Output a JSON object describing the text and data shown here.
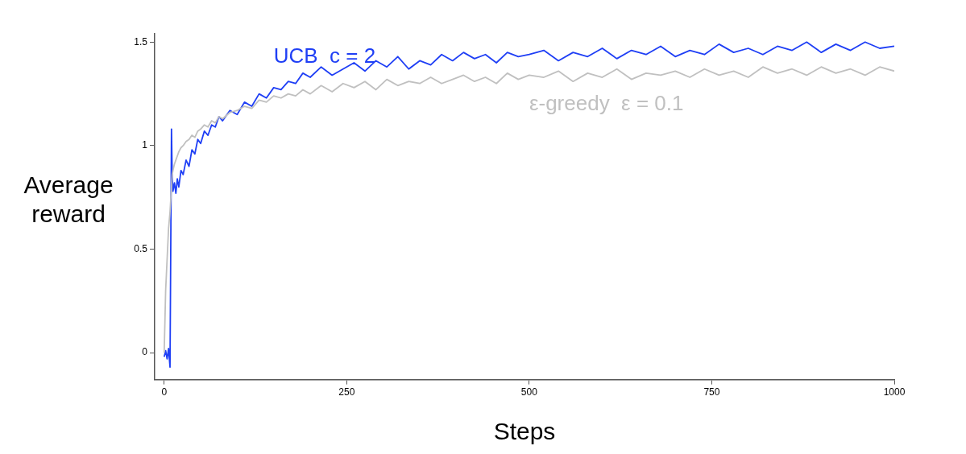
{
  "chart_data": {
    "type": "line",
    "xlabel": "Steps",
    "ylabel": "Average reward",
    "x": [
      0,
      2,
      4,
      6,
      8,
      10,
      11,
      12,
      14,
      16,
      18,
      20,
      23,
      26,
      30,
      34,
      38,
      42,
      46,
      50,
      55,
      60,
      65,
      70,
      75,
      80,
      90,
      100,
      110,
      120,
      130,
      140,
      150,
      160,
      170,
      180,
      190,
      200,
      215,
      230,
      245,
      260,
      275,
      290,
      305,
      320,
      335,
      350,
      365,
      380,
      395,
      410,
      425,
      440,
      455,
      470,
      485,
      500,
      520,
      540,
      560,
      580,
      600,
      620,
      640,
      660,
      680,
      700,
      720,
      740,
      760,
      780,
      800,
      820,
      840,
      860,
      880,
      900,
      920,
      940,
      960,
      980,
      1000
    ],
    "series": [
      {
        "name": "ε-greedy  ε = 0.1",
        "color": "#c0c0c0",
        "values": [
          0.0,
          0.3,
          0.45,
          0.6,
          0.68,
          0.8,
          0.86,
          0.88,
          0.91,
          0.93,
          0.95,
          0.97,
          0.99,
          1.0,
          1.02,
          1.03,
          1.05,
          1.04,
          1.07,
          1.08,
          1.1,
          1.09,
          1.12,
          1.11,
          1.14,
          1.13,
          1.16,
          1.17,
          1.19,
          1.18,
          1.22,
          1.21,
          1.24,
          1.23,
          1.25,
          1.24,
          1.27,
          1.25,
          1.29,
          1.26,
          1.3,
          1.28,
          1.31,
          1.27,
          1.32,
          1.29,
          1.31,
          1.3,
          1.33,
          1.3,
          1.32,
          1.34,
          1.31,
          1.33,
          1.3,
          1.35,
          1.32,
          1.34,
          1.33,
          1.36,
          1.31,
          1.35,
          1.33,
          1.37,
          1.32,
          1.35,
          1.34,
          1.36,
          1.33,
          1.37,
          1.34,
          1.36,
          1.33,
          1.38,
          1.35,
          1.37,
          1.34,
          1.38,
          1.35,
          1.37,
          1.34,
          1.38,
          1.36
        ]
      },
      {
        "name": "UCB  c = 2",
        "color": "#1f3ff5",
        "values": [
          -0.02,
          0.01,
          -0.03,
          0.02,
          -0.07,
          1.08,
          0.85,
          0.78,
          0.82,
          0.77,
          0.84,
          0.8,
          0.88,
          0.86,
          0.93,
          0.9,
          0.98,
          0.96,
          1.03,
          1.01,
          1.07,
          1.05,
          1.1,
          1.09,
          1.14,
          1.12,
          1.17,
          1.15,
          1.21,
          1.19,
          1.25,
          1.23,
          1.28,
          1.27,
          1.31,
          1.3,
          1.35,
          1.33,
          1.38,
          1.34,
          1.37,
          1.4,
          1.36,
          1.41,
          1.38,
          1.43,
          1.37,
          1.41,
          1.39,
          1.44,
          1.41,
          1.45,
          1.42,
          1.44,
          1.4,
          1.45,
          1.43,
          1.44,
          1.46,
          1.41,
          1.45,
          1.43,
          1.47,
          1.42,
          1.46,
          1.44,
          1.48,
          1.43,
          1.46,
          1.44,
          1.49,
          1.45,
          1.47,
          1.44,
          1.48,
          1.46,
          1.5,
          1.45,
          1.49,
          1.46,
          1.5,
          1.47,
          1.48
        ]
      }
    ],
    "xlim": [
      -13,
      1000
    ],
    "ylim": [
      -0.13,
      1.54
    ],
    "xticks": [
      0,
      250,
      500,
      750,
      1000
    ],
    "yticks": [
      0,
      0.5,
      1,
      1.5
    ],
    "grid": false,
    "legend": false,
    "marker": "none",
    "line_style": "solid"
  }
}
